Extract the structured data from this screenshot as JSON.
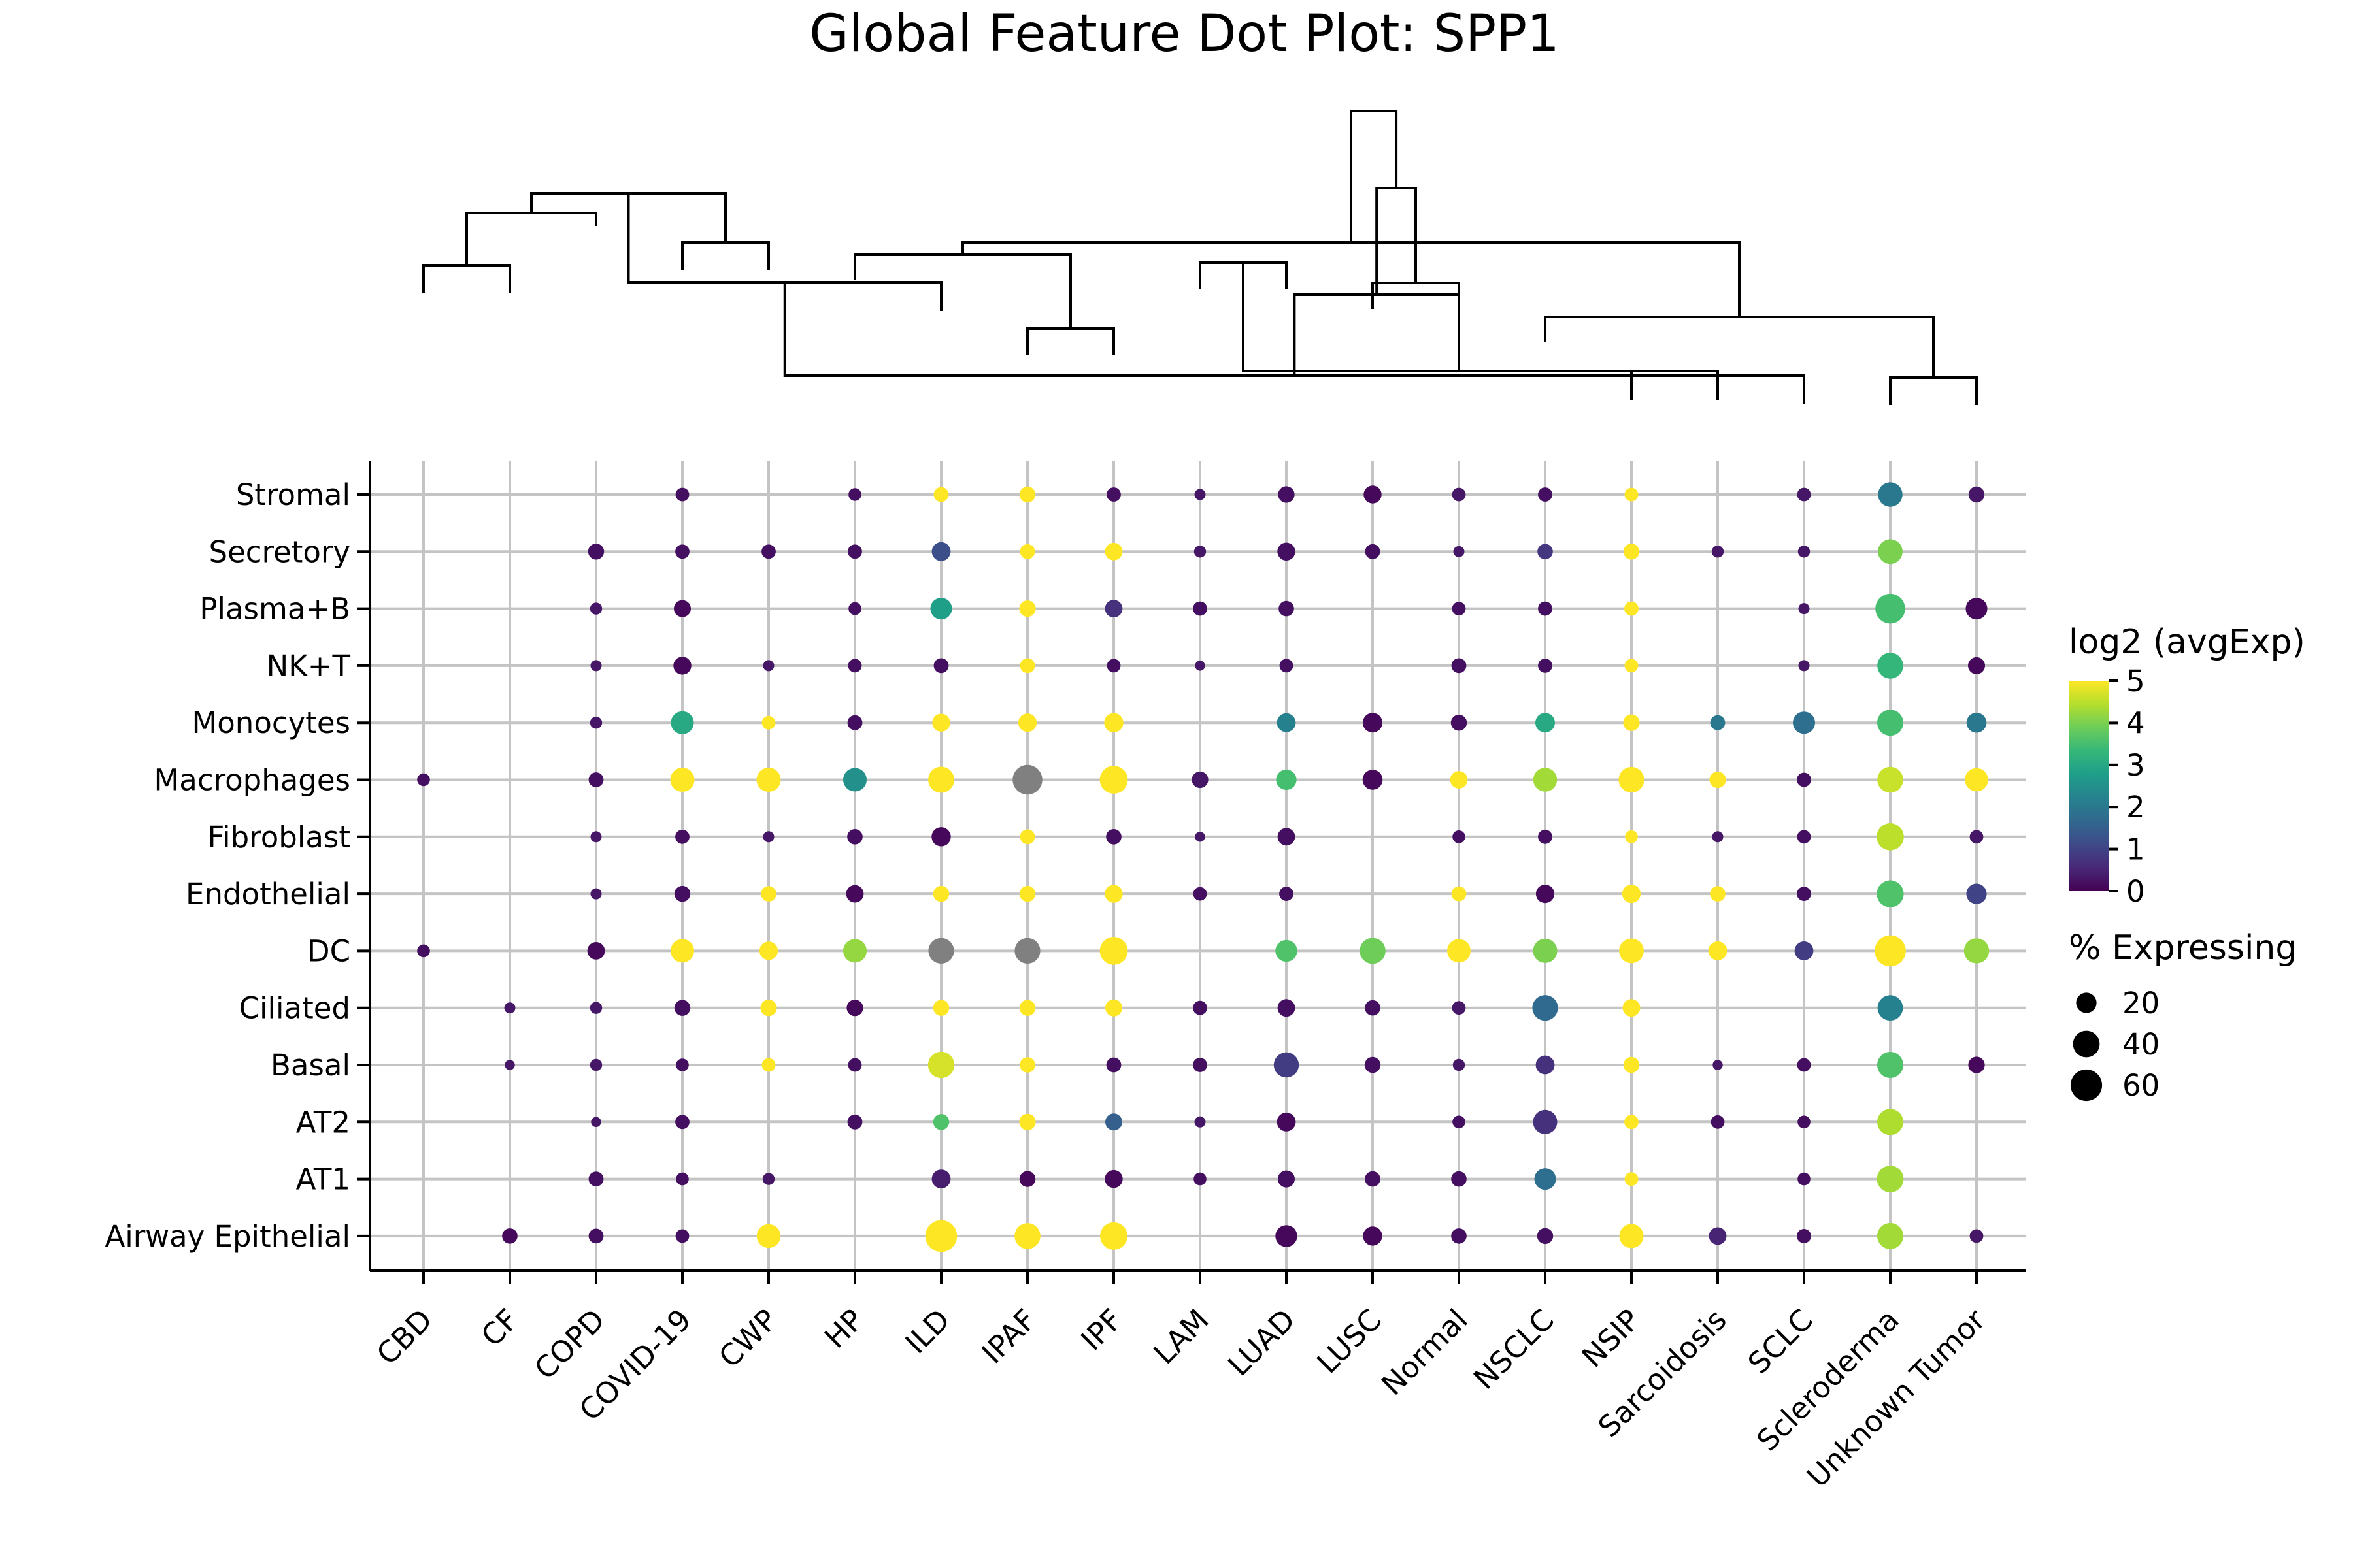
{
  "chart_data": {
    "type": "dot",
    "title": "Global Feature Dot Plot: SPP1",
    "gene": "SPP1",
    "categories": [
      "CBD",
      "CF",
      "COPD",
      "COVID-19",
      "CWP",
      "HP",
      "ILD",
      "IPAF",
      "IPF",
      "LAM",
      "LUAD",
      "LUSC",
      "Normal",
      "NSCLC",
      "NSIP",
      "Sarcoidosis",
      "SCLC",
      "Scleroderma",
      "Unknown Tumor"
    ],
    "cell_types": [
      "Stromal",
      "Secretory",
      "Plasma+B",
      "NK+T",
      "Monocytes",
      "Macrophages",
      "Fibroblast",
      "Endothelial",
      "DC",
      "Ciliated",
      "Basal",
      "AT2",
      "AT1",
      "Airway Epithelial"
    ],
    "color_legend": {
      "title": "log2 (avgExp)",
      "ticks": [
        0,
        1,
        2,
        3,
        4,
        5
      ],
      "range": [
        0,
        5
      ],
      "colormap": "viridis",
      "missing_color": "#808080"
    },
    "size_legend": {
      "title": "% Expressing",
      "values": [
        20,
        40,
        60
      ]
    },
    "grid": true,
    "dendrogram": true,
    "points": {
      "Stromal": {
        "COVID-19": [
          6,
          0.2
        ],
        "HP": [
          5,
          0.2
        ],
        "ILD": [
          8,
          5
        ],
        "IPAF": [
          10,
          5
        ],
        "IPF": [
          7,
          0.2
        ],
        "LAM": [
          3,
          0.3
        ],
        "LUAD": [
          11,
          0.2
        ],
        "LUSC": [
          14,
          0.1
        ],
        "Normal": [
          6,
          0.3
        ],
        "NSCLC": [
          7,
          0.2
        ],
        "NSIP": [
          6,
          5
        ],
        "SCLC": [
          6,
          0.3
        ],
        "Scleroderma": [
          32,
          2
        ],
        "Unknown Tumor": [
          10,
          0.3
        ]
      },
      "Secretory": {
        "COPD": [
          10,
          0.2
        ],
        "COVID-19": [
          7,
          0.2
        ],
        "CWP": [
          7,
          0.2
        ],
        "HP": [
          7,
          0.2
        ],
        "ILD": [
          16,
          1.2
        ],
        "IPAF": [
          8,
          5
        ],
        "IPF": [
          13,
          5
        ],
        "LAM": [
          4,
          0.3
        ],
        "LUAD": [
          14,
          0.2
        ],
        "LUSC": [
          8,
          0.2
        ],
        "Normal": [
          3,
          0.3
        ],
        "NSCLC": [
          9,
          0.8
        ],
        "NSIP": [
          10,
          5
        ],
        "Sarcoidosis": [
          4,
          0.3
        ],
        "SCLC": [
          4,
          0.3
        ],
        "Scleroderma": [
          33,
          4
        ]
      },
      "Plasma+B": {
        "COPD": [
          4,
          0.3
        ],
        "COVID-19": [
          12,
          0.1
        ],
        "HP": [
          5,
          0.2
        ],
        "ILD": [
          23,
          2.8
        ],
        "IPAF": [
          11,
          5
        ],
        "IPF": [
          13,
          0.7
        ],
        "LAM": [
          7,
          0.2
        ],
        "LUAD": [
          9,
          0.2
        ],
        "Normal": [
          6,
          0.2
        ],
        "NSCLC": [
          7,
          0.2
        ],
        "NSIP": [
          7,
          5
        ],
        "SCLC": [
          3,
          0.3
        ],
        "Scleroderma": [
          52,
          3.5
        ],
        "Unknown Tumor": [
          23,
          0.1
        ]
      },
      "NK+T": {
        "COPD": [
          3,
          0.3
        ],
        "COVID-19": [
          14,
          0.1
        ],
        "CWP": [
          3,
          0.3
        ],
        "HP": [
          6,
          0.2
        ],
        "ILD": [
          8,
          0.2
        ],
        "IPAF": [
          8,
          5
        ],
        "IPF": [
          6,
          0.2
        ],
        "LAM": [
          2,
          0.3
        ],
        "LUAD": [
          6,
          0.2
        ],
        "Normal": [
          8,
          0.2
        ],
        "NSCLC": [
          7,
          0.2
        ],
        "NSIP": [
          6,
          5
        ],
        "SCLC": [
          3,
          0.3
        ],
        "Scleroderma": [
          37,
          3.3
        ],
        "Unknown Tumor": [
          12,
          0.1
        ]
      },
      "Monocytes": {
        "COPD": [
          4,
          0.3
        ],
        "COVID-19": [
          27,
          3
        ],
        "CWP": [
          6,
          5
        ],
        "HP": [
          8,
          0.2
        ],
        "ILD": [
          14,
          5
        ],
        "IPAF": [
          15,
          5
        ],
        "IPF": [
          17,
          5
        ],
        "LUAD": [
          16,
          2.2
        ],
        "LUSC": [
          18,
          0.1
        ],
        "Normal": [
          10,
          0.2
        ],
        "NSCLC": [
          18,
          3
        ],
        "NSIP": [
          11,
          5
        ],
        "Sarcoidosis": [
          8,
          2
        ],
        "SCLC": [
          25,
          1.8
        ],
        "Scleroderma": [
          38,
          3.5
        ],
        "Unknown Tumor": [
          19,
          2
        ]
      },
      "Macrophages": {
        "CBD": [
          5,
          0.2
        ],
        "COPD": [
          8,
          0.2
        ],
        "COVID-19": [
          31,
          5
        ],
        "CWP": [
          31,
          5
        ],
        "HP": [
          29,
          2.5
        ],
        "ILD": [
          38,
          5
        ],
        "IPAF": [
          52,
          null
        ],
        "IPF": [
          45,
          5
        ],
        "LAM": [
          11,
          0.3
        ],
        "LUAD": [
          20,
          3.5
        ],
        "LUSC": [
          19,
          0.1
        ],
        "Normal": [
          13,
          5
        ],
        "NSCLC": [
          30,
          4.3
        ],
        "NSIP": [
          36,
          5
        ],
        "Sarcoidosis": [
          11,
          5
        ],
        "SCLC": [
          7,
          0.2
        ],
        "Scleroderma": [
          37,
          4.6
        ],
        "Unknown Tumor": [
          28,
          5
        ]
      },
      "Fibroblast": {
        "COPD": [
          3,
          0.3
        ],
        "COVID-19": [
          7,
          0.2
        ],
        "CWP": [
          3,
          0.3
        ],
        "HP": [
          9,
          0.2
        ],
        "ILD": [
          17,
          0.1
        ],
        "IPAF": [
          8,
          5
        ],
        "IPF": [
          9,
          0.2
        ],
        "LAM": [
          2,
          0.3
        ],
        "LUAD": [
          13,
          0.2
        ],
        "Normal": [
          5,
          0.2
        ],
        "NSCLC": [
          7,
          0.2
        ],
        "NSIP": [
          5,
          5
        ],
        "Sarcoidosis": [
          3,
          0.3
        ],
        "SCLC": [
          6,
          0.2
        ],
        "Scleroderma": [
          42,
          4.5
        ],
        "Unknown Tumor": [
          6,
          0.3
        ]
      },
      "Endothelial": {
        "COPD": [
          3,
          0.3
        ],
        "COVID-19": [
          10,
          0.2
        ],
        "CWP": [
          9,
          5
        ],
        "HP": [
          13,
          0.1
        ],
        "ILD": [
          10,
          5
        ],
        "IPAF": [
          10,
          5
        ],
        "IPF": [
          14,
          5
        ],
        "LAM": [
          6,
          0.2
        ],
        "LUAD": [
          7,
          0.2
        ],
        "Normal": [
          8,
          5
        ],
        "NSCLC": [
          15,
          0.1
        ],
        "NSIP": [
          15,
          5
        ],
        "Sarcoidosis": [
          9,
          5
        ],
        "SCLC": [
          7,
          0.2
        ],
        "Scleroderma": [
          41,
          3.6
        ],
        "Unknown Tumor": [
          20,
          1
        ]
      },
      "DC": {
        "CBD": [
          5,
          0.2
        ],
        "COPD": [
          13,
          0.1
        ],
        "COVID-19": [
          29,
          5
        ],
        "CWP": [
          15,
          5
        ],
        "HP": [
          29,
          4.2
        ],
        "ILD": [
          36,
          null
        ],
        "IPAF": [
          36,
          null
        ],
        "IPF": [
          45,
          5
        ],
        "LUAD": [
          24,
          3.6
        ],
        "LUSC": [
          37,
          3.9
        ],
        "Normal": [
          29,
          5
        ],
        "NSCLC": [
          31,
          4
        ],
        "NSIP": [
          33,
          5
        ],
        "Sarcoidosis": [
          16,
          5
        ],
        "SCLC": [
          16,
          0.9
        ],
        "Scleroderma": [
          58,
          5
        ],
        "Unknown Tumor": [
          34,
          4.2
        ]
      },
      "Ciliated": {
        "CF": [
          3,
          0.3
        ],
        "COPD": [
          4,
          0.3
        ],
        "COVID-19": [
          10,
          0.2
        ],
        "CWP": [
          11,
          5
        ],
        "HP": [
          11,
          0.1
        ],
        "ILD": [
          10,
          5
        ],
        "IPAF": [
          10,
          5
        ],
        "IPF": [
          12,
          5
        ],
        "LAM": [
          7,
          0.2
        ],
        "LUAD": [
          13,
          0.2
        ],
        "LUSC": [
          9,
          0.2
        ],
        "Normal": [
          6,
          0.3
        ],
        "NSCLC": [
          36,
          1.7
        ],
        "NSIP": [
          13,
          5
        ],
        "Scleroderma": [
          35,
          2.2
        ]
      },
      "Basal": {
        "CF": [
          2,
          0.3
        ],
        "COPD": [
          4,
          0.3
        ],
        "COVID-19": [
          5,
          0.2
        ],
        "CWP": [
          6,
          5
        ],
        "HP": [
          6,
          0.2
        ],
        "ILD": [
          39,
          4.7
        ],
        "IPAF": [
          9,
          5
        ],
        "IPF": [
          8,
          0.2
        ],
        "LAM": [
          7,
          0.2
        ],
        "LUAD": [
          34,
          0.9
        ],
        "LUSC": [
          10,
          0.2
        ],
        "Normal": [
          4,
          0.3
        ],
        "NSCLC": [
          16,
          0.7
        ],
        "NSIP": [
          10,
          5
        ],
        "Sarcoidosis": [
          2,
          0.3
        ],
        "SCLC": [
          6,
          0.2
        ],
        "Scleroderma": [
          38,
          3.6
        ],
        "Unknown Tumor": [
          11,
          0.1
        ]
      },
      "AT2": {
        "COPD": [
          2,
          0.3
        ],
        "COVID-19": [
          7,
          0.2
        ],
        "HP": [
          8,
          0.2
        ],
        "ILD": [
          10,
          3.6
        ],
        "IPAF": [
          11,
          5
        ],
        "IPF": [
          12,
          1.5
        ],
        "LAM": [
          3,
          0.3
        ],
        "LUAD": [
          16,
          0.1
        ],
        "Normal": [
          5,
          0.2
        ],
        "NSCLC": [
          31,
          0.7
        ],
        "NSIP": [
          7,
          5
        ],
        "Sarcoidosis": [
          6,
          0.2
        ],
        "SCLC": [
          5,
          0.2
        ],
        "Scleroderma": [
          38,
          4.4
        ]
      },
      "AT1": {
        "COPD": [
          8,
          0.2
        ],
        "COVID-19": [
          5,
          0.2
        ],
        "CWP": [
          4,
          0.3
        ],
        "ILD": [
          16,
          0.4
        ],
        "IPAF": [
          10,
          0.1
        ],
        "IPF": [
          14,
          0.1
        ],
        "LAM": [
          5,
          0.2
        ],
        "LUAD": [
          12,
          0.2
        ],
        "LUSC": [
          9,
          0.2
        ],
        "Normal": [
          9,
          0.2
        ],
        "NSCLC": [
          23,
          1.8
        ],
        "NSIP": [
          6,
          5
        ],
        "SCLC": [
          5,
          0.2
        ],
        "Scleroderma": [
          40,
          4.3
        ]
      },
      "Airway Epithelial": {
        "CF": [
          9,
          0.1
        ],
        "COPD": [
          8,
          0.2
        ],
        "COVID-19": [
          6,
          0.2
        ],
        "CWP": [
          30,
          5
        ],
        "ILD": [
          61,
          5
        ],
        "IPAF": [
          37,
          5
        ],
        "IPF": [
          43,
          5
        ],
        "LUAD": [
          24,
          0.1
        ],
        "LUSC": [
          17,
          0.1
        ],
        "Normal": [
          9,
          0.2
        ],
        "NSCLC": [
          10,
          0.2
        ],
        "NSIP": [
          31,
          5
        ],
        "Sarcoidosis": [
          13,
          0.5
        ],
        "SCLC": [
          7,
          0.2
        ],
        "Scleroderma": [
          38,
          4.3
        ],
        "Unknown Tumor": [
          6,
          0.3
        ]
      }
    }
  }
}
